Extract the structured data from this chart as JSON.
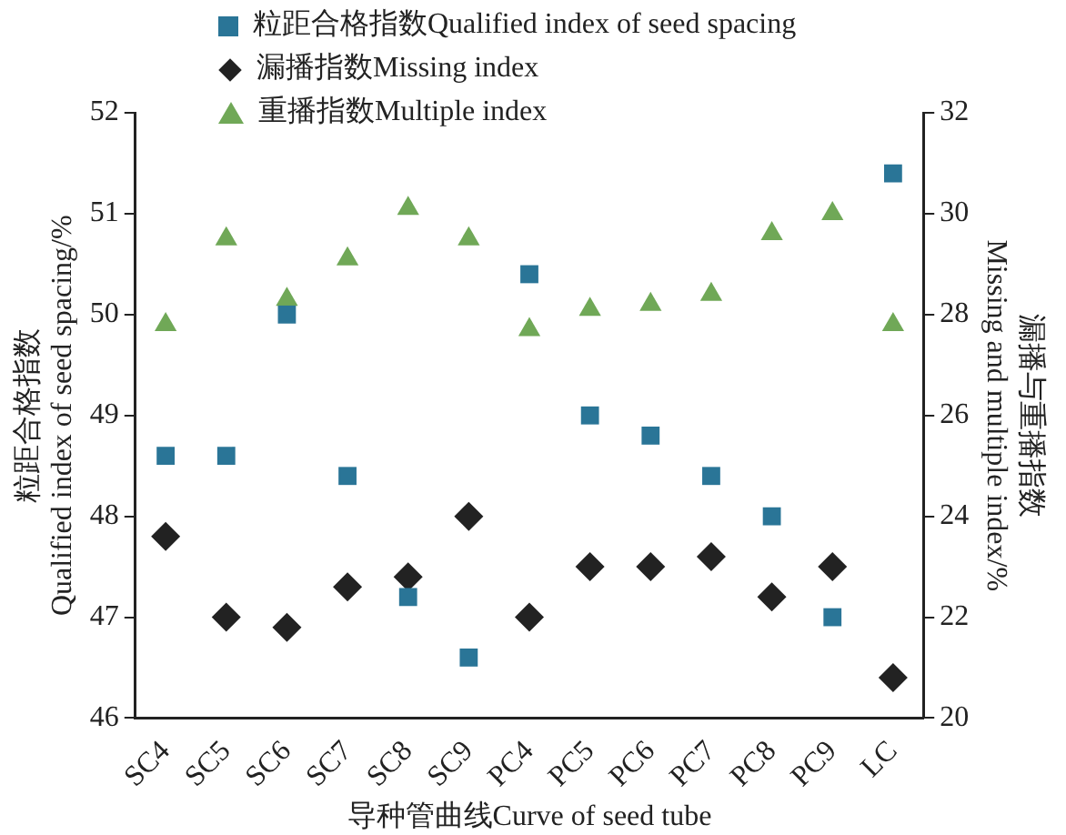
{
  "chart_data": {
    "type": "scatter",
    "xlabel": "导种管曲线Curve of seed tube",
    "ylabel": "粒距合格指数\nQualified index of seed spacing/%",
    "y2label": "漏播与重播指数\nMissing and multiple index/%",
    "categories": [
      "SC4",
      "SC5",
      "SC6",
      "SC7",
      "SC8",
      "SC9",
      "PC4",
      "PC5",
      "PC6",
      "PC7",
      "PC8",
      "PC9",
      "LC"
    ],
    "series": [
      {
        "name": "粒距合格指数Qualified index of seed spacing",
        "color": "#2a7597",
        "marker": "square",
        "values": [
          48.6,
          48.6,
          50.0,
          48.4,
          47.2,
          46.6,
          50.4,
          49.0,
          48.8,
          48.4,
          48.0,
          47.0,
          51.4
        ]
      },
      {
        "name": "漏播指数Missing index",
        "color": "#222222",
        "marker": "diamond",
        "axis": "y2",
        "values": [
          23.6,
          22.0,
          21.8,
          22.6,
          22.8,
          24.0,
          22.0,
          23.0,
          23.0,
          23.2,
          22.4,
          23.0,
          20.8
        ]
      },
      {
        "name": "重播指数Multiple index",
        "color": "#70a857",
        "marker": "triangle",
        "axis": "y2",
        "values": [
          27.8,
          29.5,
          28.3,
          29.1,
          30.1,
          29.5,
          27.7,
          28.1,
          28.2,
          28.4,
          29.6,
          30.0,
          27.8
        ]
      }
    ],
    "ylim": [
      46,
      52
    ],
    "yticks": [
      46,
      47,
      48,
      49,
      50,
      51,
      52
    ],
    "y2lim": [
      20,
      32
    ],
    "y2ticks": [
      20,
      22,
      24,
      26,
      28,
      30,
      32
    ],
    "grid": false,
    "legend": "top left"
  }
}
